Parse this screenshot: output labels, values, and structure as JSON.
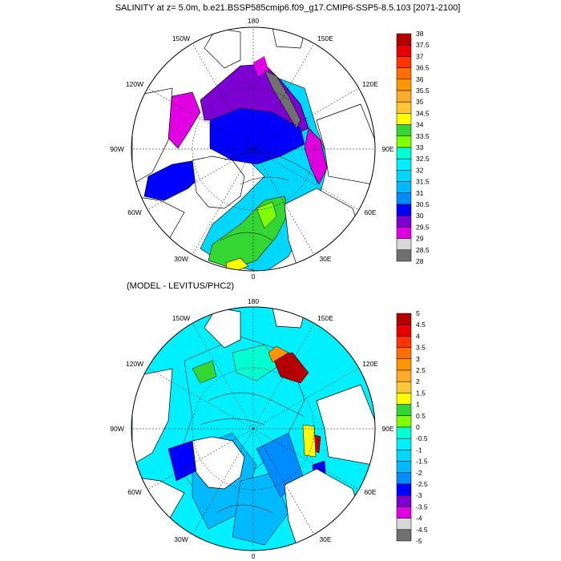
{
  "title": "SALINITY at z=   5.0m, b.e21.BSSP585cmip6.f09_g17.CMIP6-SSP5-8.5.103 [2071-2100]",
  "subtitle": "(MODEL - LEVITUS/PHC2)",
  "lon_labels": {
    "top": "180",
    "upper_left": "150W",
    "upper_right": "150E",
    "left_high": "120W",
    "right_high": "120E",
    "left": "90W",
    "right": "90E",
    "left_low": "60W",
    "right_low": "60E",
    "lower_left": "30W",
    "lower_right": "30E",
    "bottom": "0"
  },
  "colorbar_top": {
    "labels": [
      "38",
      "37.5",
      "37",
      "36.5",
      "36",
      "35.5",
      "35",
      "34.5",
      "34",
      "33.5",
      "33",
      "32.5",
      "32",
      "31.5",
      "31",
      "30.5",
      "30",
      "29.5",
      "29",
      "28.5",
      "28"
    ],
    "colors": [
      "#b40000",
      "#e60000",
      "#ff3200",
      "#ff6e00",
      "#ff9600",
      "#ffaa28",
      "#ffc832",
      "#ffff00",
      "#33d633",
      "#7fff00",
      "#00ffd2",
      "#00f0ff",
      "#00d7ff",
      "#00b9ff",
      "#008cff",
      "#0000ff",
      "#7d00d2",
      "#e100e1",
      "#d7d7d7",
      "#707070"
    ]
  },
  "colorbar_bottom": {
    "labels": [
      "5",
      "4.5",
      "4",
      "3.5",
      "3",
      "2.5",
      "2",
      "1.5",
      "1",
      "0.5",
      "0",
      "-0.5",
      "-1",
      "-1.5",
      "-2",
      "-2.5",
      "-3",
      "-3.5",
      "-4",
      "-4.5",
      "-5"
    ],
    "colors": [
      "#b40000",
      "#e60000",
      "#ff3200",
      "#ff6e00",
      "#ff9600",
      "#ffaa28",
      "#ffc832",
      "#ffff00",
      "#33d633",
      "#7fff00",
      "#00ffd2",
      "#00f0ff",
      "#00d7ff",
      "#00b9ff",
      "#008cff",
      "#0000ff",
      "#7d00d2",
      "#e100e1",
      "#d7d7d7",
      "#707070"
    ]
  }
}
